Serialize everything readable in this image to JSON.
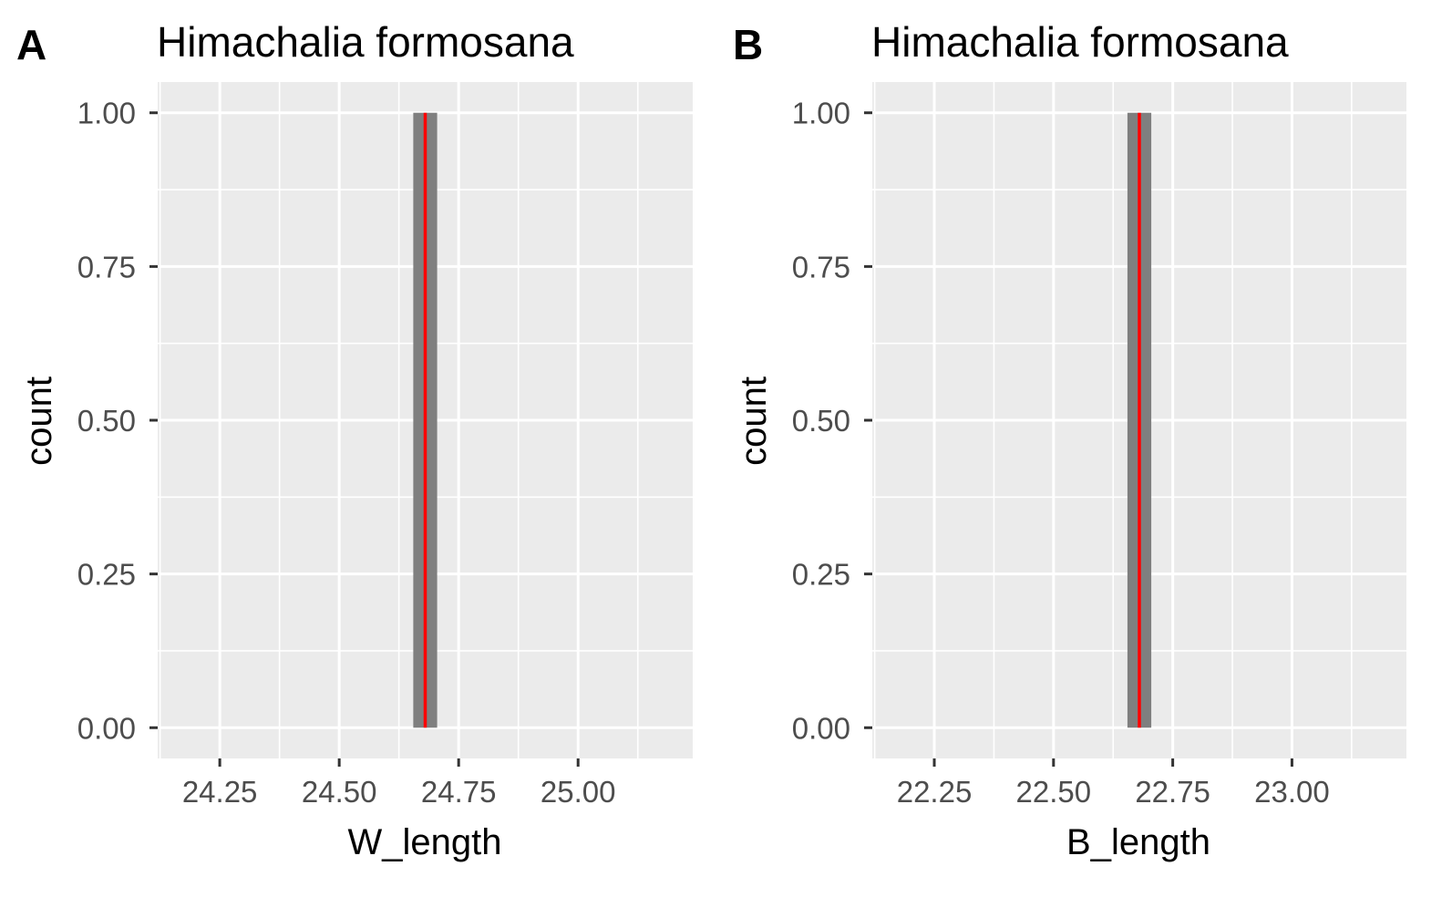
{
  "colors": {
    "panel_bg": "#ebebeb",
    "grid": "#ffffff",
    "bar_fill": "#7f7f7f",
    "mean_line": "#ff0000",
    "tick_text": "#4d4d4d",
    "tick_mark": "#333333"
  },
  "chart_data": [
    {
      "type": "bar",
      "panel_tag": "A",
      "title": "Himachalia formosana",
      "xlabel": "W_length",
      "ylabel": "count",
      "xlim": [
        24.12,
        25.24
      ],
      "ylim": [
        -0.05,
        1.05
      ],
      "x_ticks": [
        "24.25",
        "24.50",
        "24.75",
        "25.00"
      ],
      "x_tick_values": [
        24.25,
        24.5,
        24.75,
        25.0
      ],
      "y_ticks": [
        "0.00",
        "0.25",
        "0.50",
        "0.75",
        "1.00"
      ],
      "y_tick_values": [
        0,
        0.25,
        0.5,
        0.75,
        1.0
      ],
      "bars": [
        {
          "x0": 24.655,
          "x1": 24.705,
          "count": 1
        }
      ],
      "vline": 24.68,
      "grid": true
    },
    {
      "type": "bar",
      "panel_tag": "B",
      "title": "Himachalia formosana",
      "xlabel": "B_length",
      "ylabel": "count",
      "xlim": [
        22.12,
        23.24
      ],
      "ylim": [
        -0.05,
        1.05
      ],
      "x_ticks": [
        "22.25",
        "22.50",
        "22.75",
        "23.00"
      ],
      "x_tick_values": [
        22.25,
        22.5,
        22.75,
        23.0
      ],
      "y_ticks": [
        "0.00",
        "0.25",
        "0.50",
        "0.75",
        "1.00"
      ],
      "y_tick_values": [
        0,
        0.25,
        0.5,
        0.75,
        1.0
      ],
      "bars": [
        {
          "x0": 22.655,
          "x1": 22.705,
          "count": 1
        }
      ],
      "vline": 22.68,
      "grid": true
    }
  ]
}
